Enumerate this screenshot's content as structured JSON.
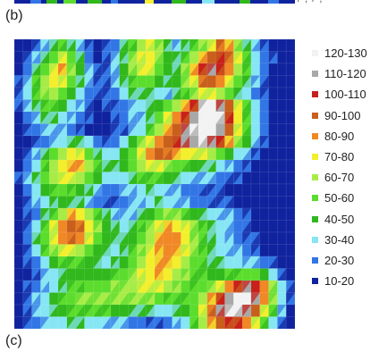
{
  "panels": {
    "b_label": "(b)",
    "c_label": "(c)",
    "top_strip_tail": "/ , / ,"
  },
  "chart_data": {
    "type": "heatmap",
    "title": "",
    "xlabel": "",
    "ylabel": "",
    "grid": false,
    "legend_position": "right",
    "legend": [
      {
        "label": "120-130",
        "color": "#f2f2f2"
      },
      {
        "label": "110-120",
        "color": "#a8a8a8"
      },
      {
        "label": "100-110",
        "color": "#c8201b"
      },
      {
        "label": "90-100",
        "color": "#c85f1c"
      },
      {
        "label": "80-90",
        "color": "#f08826"
      },
      {
        "label": "70-80",
        "color": "#f3ef2c"
      },
      {
        "label": "60-70",
        "color": "#a7ec47"
      },
      {
        "label": "50-60",
        "color": "#5cdd2e"
      },
      {
        "label": "40-50",
        "color": "#31b81d"
      },
      {
        "label": "30-40",
        "color": "#87e6f4"
      },
      {
        "label": "20-30",
        "color": "#3276e6"
      },
      {
        "label": "10-20",
        "color": "#10239e"
      }
    ],
    "grid_values": [
      [
        15,
        18,
        25,
        35,
        45,
        55,
        45,
        35,
        25,
        15,
        20,
        28,
        40,
        55,
        68,
        75,
        60,
        45,
        35,
        45,
        55,
        65,
        72,
        95,
        85,
        60,
        45,
        35,
        25,
        18,
        15,
        12
      ],
      [
        15,
        22,
        32,
        45,
        58,
        72,
        58,
        42,
        28,
        18,
        22,
        32,
        45,
        60,
        72,
        78,
        62,
        48,
        40,
        55,
        68,
        82,
        98,
        105,
        92,
        70,
        52,
        38,
        28,
        20,
        15,
        12
      ],
      [
        18,
        28,
        42,
        58,
        70,
        82,
        65,
        48,
        32,
        22,
        25,
        35,
        48,
        62,
        70,
        72,
        58,
        46,
        45,
        62,
        80,
        100,
        110,
        102,
        88,
        68,
        50,
        36,
        26,
        18,
        14,
        12
      ],
      [
        22,
        35,
        50,
        66,
        78,
        70,
        56,
        42,
        30,
        22,
        25,
        32,
        42,
        52,
        58,
        56,
        48,
        40,
        46,
        60,
        75,
        92,
        98,
        88,
        72,
        56,
        42,
        30,
        22,
        16,
        13,
        12
      ],
      [
        25,
        38,
        52,
        62,
        66,
        58,
        46,
        36,
        28,
        20,
        22,
        28,
        36,
        42,
        45,
        42,
        36,
        32,
        40,
        52,
        62,
        70,
        72,
        66,
        56,
        45,
        36,
        26,
        20,
        15,
        12,
        12
      ],
      [
        22,
        32,
        42,
        50,
        52,
        46,
        38,
        30,
        24,
        18,
        20,
        24,
        28,
        32,
        36,
        40,
        48,
        58,
        68,
        82,
        102,
        120,
        128,
        112,
        96,
        72,
        52,
        36,
        26,
        18,
        13,
        12
      ],
      [
        18,
        26,
        34,
        40,
        42,
        38,
        32,
        26,
        20,
        16,
        18,
        22,
        26,
        30,
        34,
        42,
        56,
        70,
        86,
        100,
        118,
        128,
        130,
        120,
        100,
        76,
        55,
        38,
        26,
        18,
        13,
        12
      ],
      [
        15,
        20,
        26,
        32,
        34,
        32,
        28,
        22,
        18,
        15,
        16,
        20,
        24,
        30,
        38,
        50,
        66,
        80,
        96,
        110,
        124,
        128,
        126,
        118,
        98,
        74,
        54,
        38,
        26,
        18,
        13,
        12
      ],
      [
        14,
        18,
        22,
        28,
        32,
        36,
        40,
        44,
        38,
        28,
        24,
        28,
        36,
        48,
        60,
        72,
        86,
        96,
        104,
        112,
        118,
        120,
        115,
        100,
        82,
        62,
        46,
        32,
        22,
        16,
        12,
        12
      ],
      [
        16,
        22,
        30,
        42,
        56,
        68,
        76,
        70,
        58,
        44,
        36,
        38,
        46,
        58,
        72,
        86,
        96,
        92,
        84,
        78,
        74,
        70,
        66,
        58,
        48,
        38,
        30,
        22,
        18,
        14,
        12,
        12
      ],
      [
        18,
        26,
        38,
        52,
        66,
        78,
        84,
        80,
        68,
        54,
        44,
        42,
        46,
        56,
        66,
        74,
        72,
        64,
        56,
        50,
        46,
        42,
        40,
        38,
        34,
        28,
        22,
        18,
        14,
        12,
        12,
        12
      ],
      [
        20,
        30,
        42,
        56,
        66,
        72,
        74,
        68,
        58,
        46,
        38,
        36,
        38,
        44,
        50,
        54,
        52,
        46,
        40,
        36,
        34,
        32,
        30,
        28,
        24,
        20,
        16,
        14,
        12,
        12,
        12,
        12
      ],
      [
        18,
        26,
        36,
        46,
        54,
        56,
        54,
        48,
        40,
        32,
        28,
        28,
        30,
        34,
        38,
        40,
        38,
        34,
        30,
        28,
        26,
        24,
        22,
        20,
        18,
        16,
        14,
        12,
        12,
        12,
        12,
        12
      ],
      [
        15,
        22,
        30,
        38,
        44,
        46,
        44,
        40,
        34,
        28,
        24,
        24,
        26,
        30,
        34,
        38,
        40,
        38,
        34,
        30,
        28,
        26,
        24,
        22,
        20,
        18,
        16,
        14,
        12,
        12,
        12,
        12
      ],
      [
        14,
        20,
        28,
        40,
        54,
        68,
        80,
        78,
        66,
        52,
        40,
        34,
        32,
        34,
        40,
        48,
        56,
        62,
        60,
        54,
        48,
        42,
        38,
        34,
        30,
        26,
        22,
        18,
        15,
        13,
        12,
        12
      ],
      [
        16,
        24,
        36,
        52,
        70,
        86,
        96,
        92,
        78,
        62,
        48,
        40,
        38,
        42,
        50,
        60,
        72,
        80,
        78,
        70,
        60,
        50,
        42,
        36,
        30,
        26,
        22,
        18,
        15,
        13,
        12,
        12
      ],
      [
        18,
        28,
        42,
        58,
        74,
        88,
        94,
        88,
        74,
        58,
        46,
        40,
        40,
        46,
        56,
        68,
        80,
        88,
        86,
        76,
        64,
        52,
        44,
        38,
        32,
        28,
        24,
        20,
        16,
        14,
        12,
        12
      ],
      [
        16,
        24,
        36,
        50,
        62,
        70,
        72,
        66,
        56,
        46,
        40,
        38,
        42,
        50,
        62,
        74,
        84,
        88,
        84,
        74,
        62,
        52,
        44,
        38,
        34,
        30,
        26,
        22,
        18,
        15,
        13,
        12
      ],
      [
        14,
        20,
        28,
        38,
        46,
        52,
        54,
        52,
        46,
        40,
        38,
        40,
        46,
        56,
        68,
        78,
        84,
        84,
        78,
        68,
        58,
        50,
        44,
        40,
        38,
        36,
        34,
        30,
        26,
        20,
        16,
        13
      ],
      [
        14,
        18,
        24,
        30,
        36,
        42,
        46,
        48,
        48,
        46,
        46,
        50,
        56,
        64,
        72,
        78,
        80,
        76,
        68,
        60,
        54,
        50,
        48,
        48,
        50,
        54,
        58,
        56,
        48,
        36,
        24,
        16
      ],
      [
        15,
        20,
        26,
        32,
        38,
        44,
        50,
        54,
        58,
        58,
        58,
        60,
        64,
        68,
        72,
        74,
        72,
        66,
        60,
        56,
        54,
        56,
        62,
        72,
        86,
        100,
        112,
        106,
        86,
        60,
        36,
        20
      ],
      [
        16,
        22,
        30,
        38,
        46,
        52,
        58,
        62,
        64,
        64,
        62,
        62,
        62,
        62,
        62,
        60,
        56,
        52,
        50,
        52,
        58,
        68,
        82,
        100,
        118,
        128,
        126,
        112,
        88,
        60,
        36,
        20
      ],
      [
        16,
        22,
        30,
        38,
        44,
        48,
        52,
        54,
        54,
        52,
        50,
        48,
        46,
        44,
        42,
        40,
        38,
        38,
        40,
        46,
        56,
        72,
        92,
        110,
        122,
        124,
        114,
        96,
        74,
        50,
        30,
        18
      ],
      [
        15,
        20,
        26,
        32,
        36,
        38,
        40,
        40,
        38,
        36,
        34,
        32,
        30,
        28,
        26,
        24,
        24,
        26,
        30,
        38,
        50,
        66,
        84,
        98,
        104,
        100,
        88,
        72,
        54,
        36,
        22,
        15
      ]
    ]
  }
}
